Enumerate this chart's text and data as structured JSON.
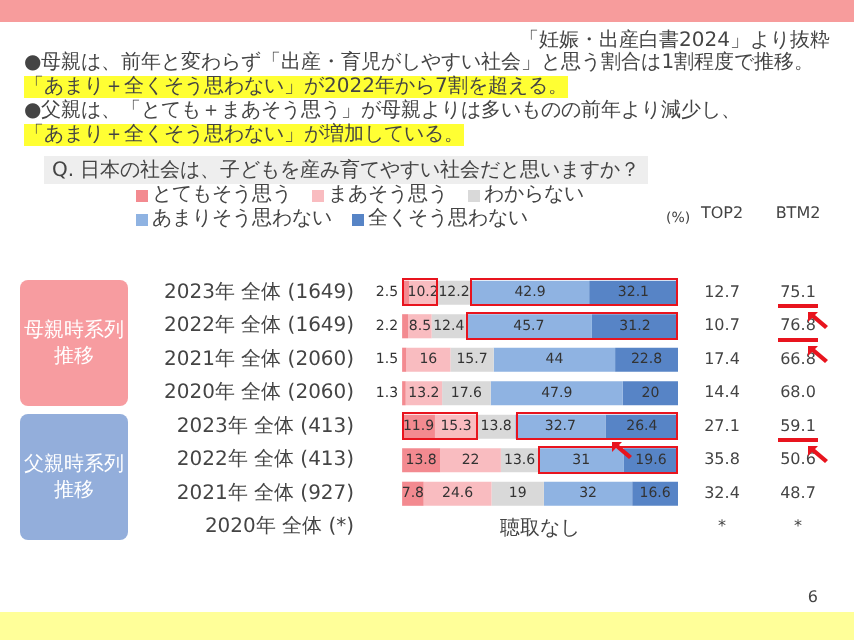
{
  "chart_data": {
    "type": "bar",
    "orientation": "horizontal",
    "stacked": true,
    "title": "Q. 日本の社会は、子どもを産み育てやすい社会だと思いますか？",
    "categories": [
      "2023年 全体 (1649)",
      "2022年 全体 (1649)",
      "2021年 全体 (2060)",
      "2020年 全体 (2060)",
      "2023年 全体 (413)",
      "2022年 全体 (413)",
      "2021年 全体 (927)",
      "2020年 全体 (*)"
    ],
    "series": [
      {
        "name": "とてもそう思う",
        "color": "#f38a90",
        "values": [
          2.5,
          2.2,
          1.5,
          1.3,
          11.9,
          13.8,
          7.8,
          null
        ]
      },
      {
        "name": "まあそう思う",
        "color": "#f9bcc0",
        "values": [
          10.2,
          8.5,
          16.0,
          13.2,
          15.3,
          22.0,
          24.6,
          null
        ]
      },
      {
        "name": "わからない",
        "color": "#d9d9d9",
        "values": [
          12.2,
          12.4,
          15.7,
          17.6,
          13.8,
          13.6,
          19.0,
          null
        ]
      },
      {
        "name": "あまりそう思わない",
        "color": "#8fb3e2",
        "values": [
          42.9,
          45.7,
          44.0,
          47.9,
          32.7,
          31.0,
          32.0,
          null
        ]
      },
      {
        "name": "全くそう思わない",
        "color": "#5784c6",
        "values": [
          32.1,
          31.2,
          22.8,
          20.0,
          26.4,
          19.6,
          16.6,
          null
        ]
      }
    ],
    "xlim": [
      0,
      100
    ],
    "tick_labels": "y",
    "grid": false,
    "legend": "top",
    "data_labels": true,
    "annotations": [
      "「妊娠・出産白書2024」より抜粋",
      "●母親は、前年と変わらず「出産・育児がしやすい社会」と思う割合は1割程度で推移。",
      "「あまり＋全くそう思わない」が2022年から7割を超える。",
      "●父親は、「とても＋まあそう思う」が母親よりは多いものの前年より減少し、",
      "「あまり＋全くそう思わない」が増加している。",
      "母親時系列推移",
      "父親時系列推移",
      "(%)",
      "TOP2",
      "BTM2",
      "6",
      "12.7",
      "75.1",
      "10.7",
      "76.8",
      "17.4",
      "66.8",
      "14.4",
      "68.0",
      "27.1",
      "59.1",
      "35.8",
      "50.6",
      "32.4",
      "48.7",
      "*",
      "*",
      "聴取なし"
    ]
  }
}
